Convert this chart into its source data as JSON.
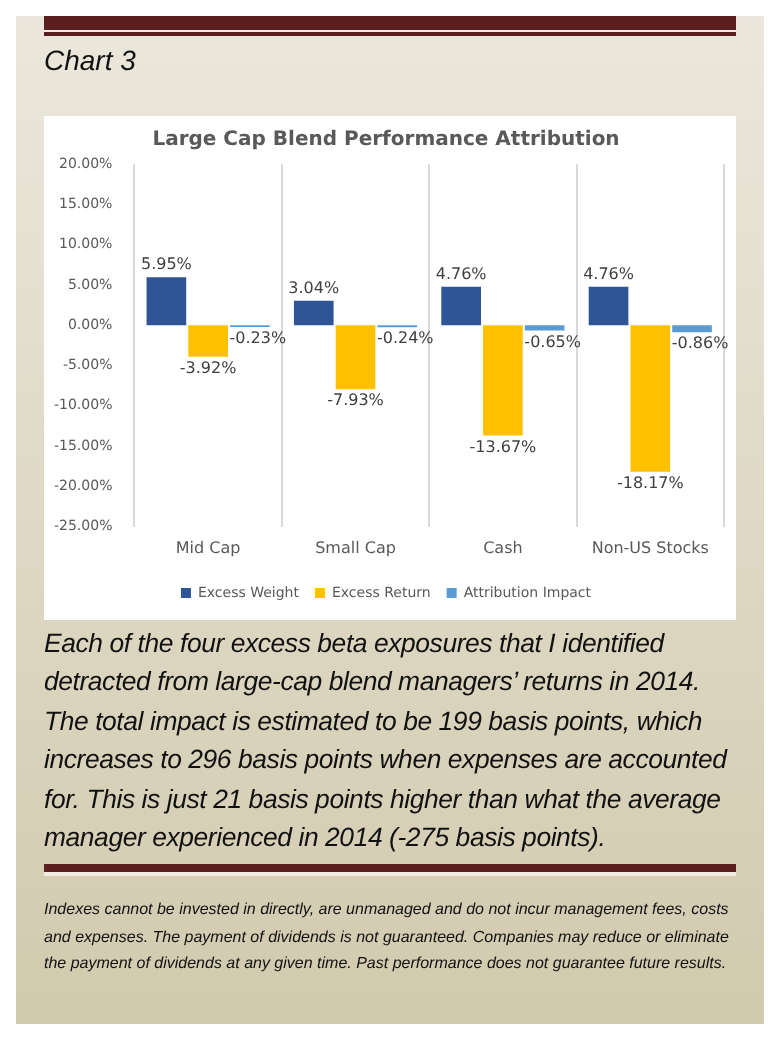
{
  "chart_data": {
    "type": "bar",
    "title": "Large Cap Blend Performance Attribution",
    "categories": [
      "Mid Cap",
      "Small Cap",
      "Cash",
      "Non-US Stocks"
    ],
    "series": [
      {
        "name": "Excess Weight",
        "color": "#2f5597",
        "values": [
          5.95,
          3.04,
          4.76,
          4.76
        ],
        "value_labels": [
          "5.95%",
          "3.04%",
          "4.76%",
          "4.76%"
        ]
      },
      {
        "name": "Excess Return",
        "color": "#ffc000",
        "values": [
          -3.92,
          -7.93,
          -13.67,
          -18.17
        ],
        "value_labels": [
          "-3.92%",
          "-7.93%",
          "-13.67%",
          "-18.17%"
        ]
      },
      {
        "name": "Attribution Impact",
        "color": "#5b9bd5",
        "values": [
          -0.23,
          -0.24,
          -0.65,
          -0.86
        ],
        "value_labels": [
          "-0.23%",
          "-0.24%",
          "-0.65%",
          "-0.86%"
        ]
      }
    ],
    "ylim": [
      -25,
      20
    ],
    "yticks": [
      {
        "value": -25,
        "label": "-25.00%"
      },
      {
        "value": -20,
        "label": "-20.00%"
      },
      {
        "value": -15,
        "label": "-15.00%"
      },
      {
        "value": -10,
        "label": "-10.00%"
      },
      {
        "value": -5,
        "label": "-5.00%"
      },
      {
        "value": 0,
        "label": "0.00%"
      },
      {
        "value": 5,
        "label": "5.00%"
      },
      {
        "value": 10,
        "label": "10.00%"
      },
      {
        "value": 15,
        "label": "15.00%"
      },
      {
        "value": 20,
        "label": "20.00%"
      }
    ],
    "grid": "x",
    "legend": "bottom",
    "annotations": [
      "Chart 3",
      "Each of the four excess beta exposures that I identified detracted from large-cap blend managers’ returns in 2014. The total impact is estimated to be 199 basis points, which increases to 296 basis points when expenses are accounted for. This is just 21 basis points higher than what the average manager experienced in 2014 (-275 basis points).",
      "Indexes cannot be invested in directly, are unmanaged and do not incur management fees, costs and expenses. The payment of dividends is not guaranteed. Companies may reduce or eliminate the payment of dividends at any given time. Past performance does not guarantee future results."
    ]
  }
}
